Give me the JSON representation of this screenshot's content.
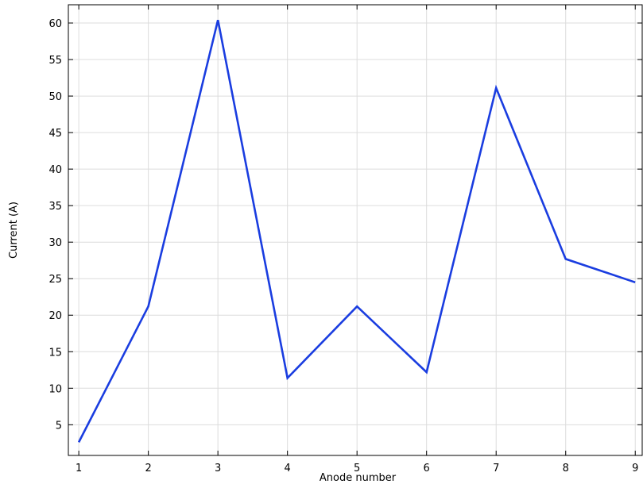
{
  "chart_data": {
    "type": "line",
    "title": "",
    "xlabel": "Anode number",
    "ylabel": "Current (A)",
    "xlim": [
      0.85,
      9.1
    ],
    "ylim": [
      0.8,
      62.5
    ],
    "x_ticks": [
      1,
      2,
      3,
      4,
      5,
      6,
      7,
      8,
      9
    ],
    "y_ticks": [
      5,
      10,
      15,
      20,
      25,
      30,
      35,
      40,
      45,
      50,
      55,
      60
    ],
    "grid": true,
    "legend": "none",
    "series": [
      {
        "color": "#1a3de0",
        "x": [
          1,
          2,
          3,
          4,
          5,
          6,
          7,
          8,
          9
        ],
        "y": [
          2.6,
          21.2,
          60.4,
          11.4,
          21.2,
          12.2,
          51.1,
          27.7,
          24.5
        ]
      }
    ]
  }
}
